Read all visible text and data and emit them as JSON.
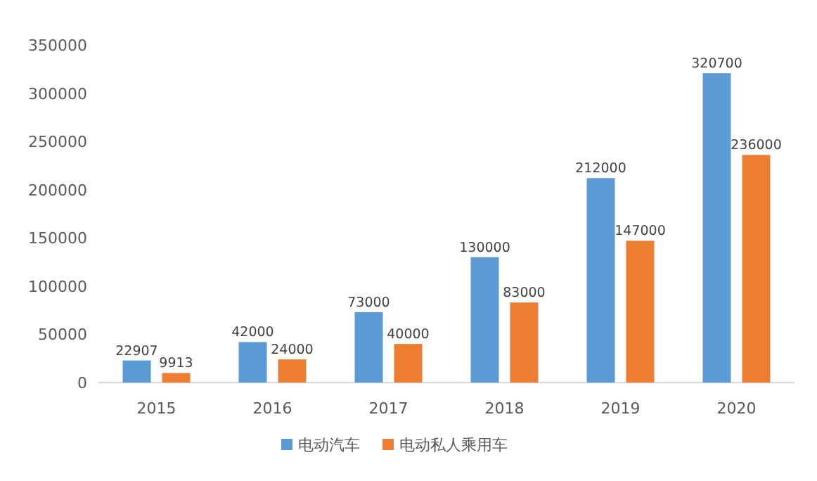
{
  "chart_data": {
    "type": "bar",
    "categories": [
      "2015",
      "2016",
      "2017",
      "2018",
      "2019",
      "2020"
    ],
    "series": [
      {
        "name": "电动汽车",
        "color": "#5b9bd5",
        "values": [
          22907,
          42000,
          73000,
          130000,
          212000,
          320700
        ]
      },
      {
        "name": "电动私人乘用车",
        "color": "#ed7d31",
        "values": [
          9913,
          24000,
          40000,
          83000,
          147000,
          236000
        ]
      }
    ],
    "ylim": [
      0,
      350000
    ],
    "yticks": [
      0,
      50000,
      100000,
      150000,
      200000,
      250000,
      300000,
      350000
    ],
    "data_labels": true,
    "grid": false,
    "legend": "bottom"
  }
}
